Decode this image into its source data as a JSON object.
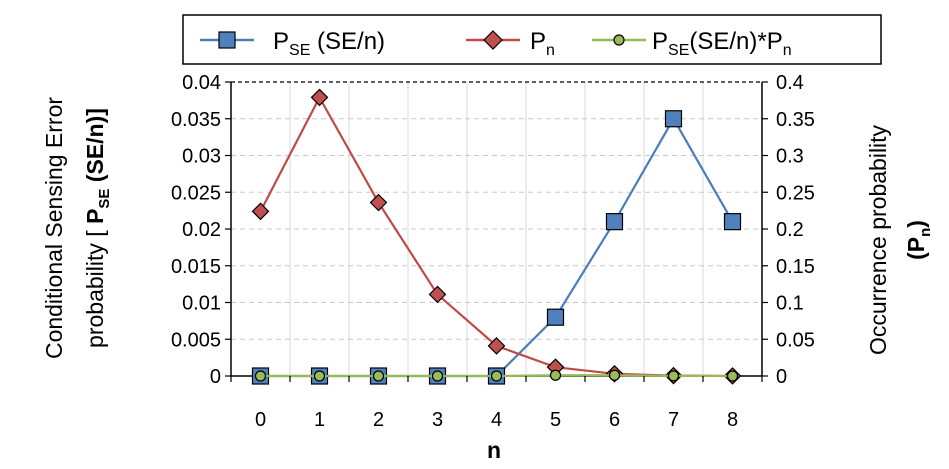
{
  "chart_data": {
    "type": "line",
    "x": [
      0,
      1,
      2,
      3,
      4,
      5,
      6,
      7,
      8
    ],
    "xlabel": "n",
    "y_left": {
      "label_line1": "Conditional Sensing Error",
      "label_line2_prefix": "probability [ ",
      "label_line2_main": "P",
      "label_line2_sub": "SE",
      "label_line2_suffix": " (SE/n)]",
      "lim": [
        0,
        0.04
      ],
      "ticks": [
        "0",
        "0.005",
        "0.01",
        "0.015",
        "0.02",
        "0.025",
        "0.03",
        "0.035",
        "0.04"
      ]
    },
    "y_right": {
      "label_line1": "Occurrence probability",
      "label_line2_main": "(P",
      "label_line2_sub": "n",
      "label_line2_suffix": ")",
      "lim": [
        0,
        0.4
      ],
      "ticks": [
        "0",
        "0.05",
        "0.1",
        "0.15",
        "0.2",
        "0.25",
        "0.3",
        "0.35",
        "0.4"
      ]
    },
    "grid": true,
    "legend_position": "top",
    "series": [
      {
        "name": "PSE (SE/n)",
        "legend_main": "P",
        "legend_sub": "SE",
        "legend_suffix": " (SE/n)",
        "axis": "left",
        "marker": "square",
        "line_color": "#4a7ebb",
        "marker_fill": "#4f81bd",
        "values": [
          0,
          0,
          0,
          0,
          0,
          0.008,
          0.021,
          0.035,
          0.021
        ]
      },
      {
        "name": "Pn",
        "legend_main": "P",
        "legend_sub": "n",
        "legend_suffix": "",
        "axis": "right",
        "marker": "diamond",
        "line_color": "#be4b48",
        "marker_fill": "#c0504d",
        "values": [
          0.224,
          0.379,
          0.236,
          0.111,
          0.041,
          0.012,
          0.003,
          0.0005,
          0.0001
        ]
      },
      {
        "name": "PSE(SE/n)*Pn",
        "legend_main": "P",
        "legend_sub": "SE",
        "legend_suffix": "(SE/n)*P",
        "legend_sub2": "n",
        "axis": "left",
        "marker": "circle",
        "line_color": "#98b954",
        "marker_fill": "#9bbb59",
        "values": [
          0,
          0,
          0,
          0,
          0,
          0.0001,
          0.0001,
          2e-05,
          2e-06
        ]
      }
    ]
  }
}
